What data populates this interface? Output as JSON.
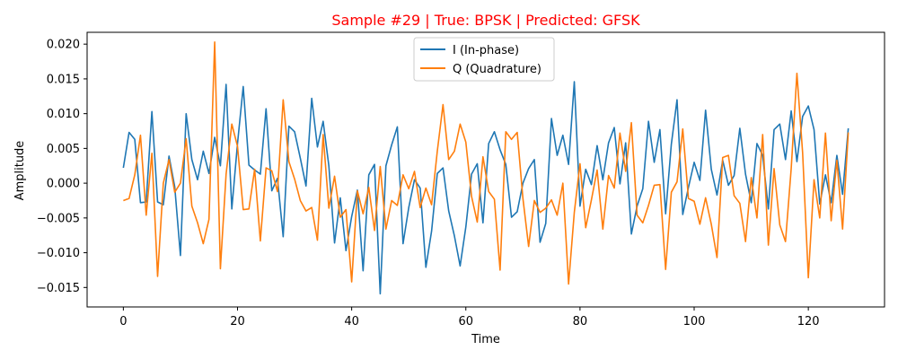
{
  "chart_data": {
    "type": "line",
    "title": "Sample #29 | True: BPSK | Predicted: GFSK",
    "title_color": "#ff0000",
    "xlabel": "Time",
    "ylabel": "Amplitude",
    "xlim": [
      -6.35,
      133.35
    ],
    "ylim": [
      -0.0178,
      0.0217
    ],
    "xticks": [
      0,
      20,
      40,
      60,
      80,
      100,
      120
    ],
    "xtick_labels": [
      "0",
      "20",
      "40",
      "60",
      "80",
      "100",
      "120"
    ],
    "yticks": [
      -0.015,
      -0.01,
      -0.005,
      0.0,
      0.005,
      0.01,
      0.015,
      0.02
    ],
    "ytick_labels": [
      "−0.015",
      "−0.010",
      "−0.005",
      "0.000",
      "0.005",
      "0.010",
      "0.015",
      "0.020"
    ],
    "grid": false,
    "legend_position": "upper center",
    "series": [
      {
        "name": "I (In-phase)",
        "color": "#1f77b4",
        "values": [
          0.0022,
          0.0073,
          0.0063,
          -0.0028,
          -0.0027,
          0.0103,
          -0.0027,
          -0.0031,
          0.0039,
          -0.0005,
          -0.0104,
          0.01,
          0.0034,
          0.0005,
          0.0046,
          0.0014,
          0.0066,
          0.0025,
          0.0142,
          -0.0037,
          0.0057,
          0.0139,
          0.0026,
          0.0019,
          0.0013,
          0.0107,
          -0.0011,
          0.0007,
          -0.0077,
          0.0082,
          0.0074,
          0.0036,
          -0.0004,
          0.0122,
          0.0052,
          0.0089,
          0.0025,
          -0.0086,
          -0.0021,
          -0.0097,
          -0.0048,
          -0.001,
          -0.0126,
          0.0012,
          0.0027,
          -0.0159,
          0.0025,
          0.0055,
          0.0081,
          -0.0087,
          -0.0035,
          0.0005,
          -0.0007,
          -0.0121,
          -0.0069,
          0.0014,
          0.0022,
          -0.004,
          -0.0076,
          -0.0119,
          -0.0063,
          0.0013,
          0.0028,
          -0.0057,
          0.0057,
          0.0074,
          0.0048,
          0.0027,
          -0.0049,
          -0.0041,
          0.0,
          0.0021,
          0.0034,
          -0.0085,
          -0.0058,
          0.0093,
          0.004,
          0.0069,
          0.0027,
          0.0146,
          -0.0033,
          0.002,
          -0.0002,
          0.0054,
          0.0005,
          0.0058,
          0.008,
          -0.0001,
          0.0058,
          -0.0073,
          -0.0033,
          -0.0008,
          0.0089,
          0.003,
          0.0077,
          -0.0044,
          0.0056,
          0.012,
          -0.0045,
          -0.0006,
          0.003,
          0.0004,
          0.0105,
          0.002,
          -0.0017,
          0.0033,
          -0.0003,
          0.0011,
          0.0079,
          0.0013,
          -0.0028,
          0.0057,
          0.004,
          -0.0037,
          0.0077,
          0.0085,
          0.0034,
          0.0104,
          0.0031,
          0.0096,
          0.0111,
          0.0077,
          -0.003,
          0.0012,
          -0.0028,
          0.004,
          -0.0016,
          0.0079
        ]
      },
      {
        "name": "Q (Quadrature)",
        "color": "#ff7f0e",
        "values": [
          -0.0025,
          -0.0022,
          0.0012,
          0.0069,
          -0.0046,
          0.0043,
          -0.0134,
          0.0,
          0.0034,
          -0.0013,
          0.0,
          0.0064,
          -0.0033,
          -0.0057,
          -0.0087,
          -0.0052,
          0.0203,
          -0.0123,
          0.0013,
          0.0085,
          0.0053,
          -0.0038,
          -0.0037,
          0.002,
          -0.0083,
          0.0022,
          0.0018,
          -0.0012,
          0.012,
          0.0031,
          0.0006,
          -0.0025,
          -0.004,
          -0.0035,
          -0.0082,
          0.007,
          -0.0036,
          0.001,
          -0.0049,
          -0.0038,
          -0.0142,
          -0.0011,
          -0.0044,
          -0.0006,
          -0.0068,
          0.0024,
          -0.0066,
          -0.0025,
          -0.0032,
          0.0012,
          -0.0008,
          0.0017,
          -0.0035,
          -0.0007,
          -0.0031,
          0.0046,
          0.0113,
          0.0034,
          0.0046,
          0.0085,
          0.0059,
          -0.0019,
          -0.0056,
          0.0038,
          -0.0012,
          -0.0023,
          -0.0125,
          0.0074,
          0.0063,
          0.0073,
          -0.0022,
          -0.0091,
          -0.0025,
          -0.0042,
          -0.0036,
          -0.0024,
          -0.0046,
          0.0,
          -0.0145,
          -0.0042,
          0.0028,
          -0.0064,
          -0.0024,
          0.0019,
          -0.0066,
          0.0011,
          -0.0007,
          0.0072,
          0.0017,
          0.0087,
          -0.0046,
          -0.0057,
          -0.0032,
          -0.0003,
          -0.0002,
          -0.0124,
          -0.0013,
          0.0002,
          0.0078,
          -0.0022,
          -0.0026,
          -0.0059,
          -0.0021,
          -0.0059,
          -0.0107,
          0.0037,
          0.004,
          -0.0018,
          -0.0029,
          -0.0084,
          0.0008,
          -0.005,
          0.007,
          -0.0089,
          0.0021,
          -0.006,
          -0.0084,
          0.0021,
          0.0158,
          0.0044,
          -0.0136,
          0.0005,
          -0.005,
          0.0072,
          -0.0054,
          0.0033,
          -0.0066,
          0.0073
        ]
      }
    ]
  }
}
